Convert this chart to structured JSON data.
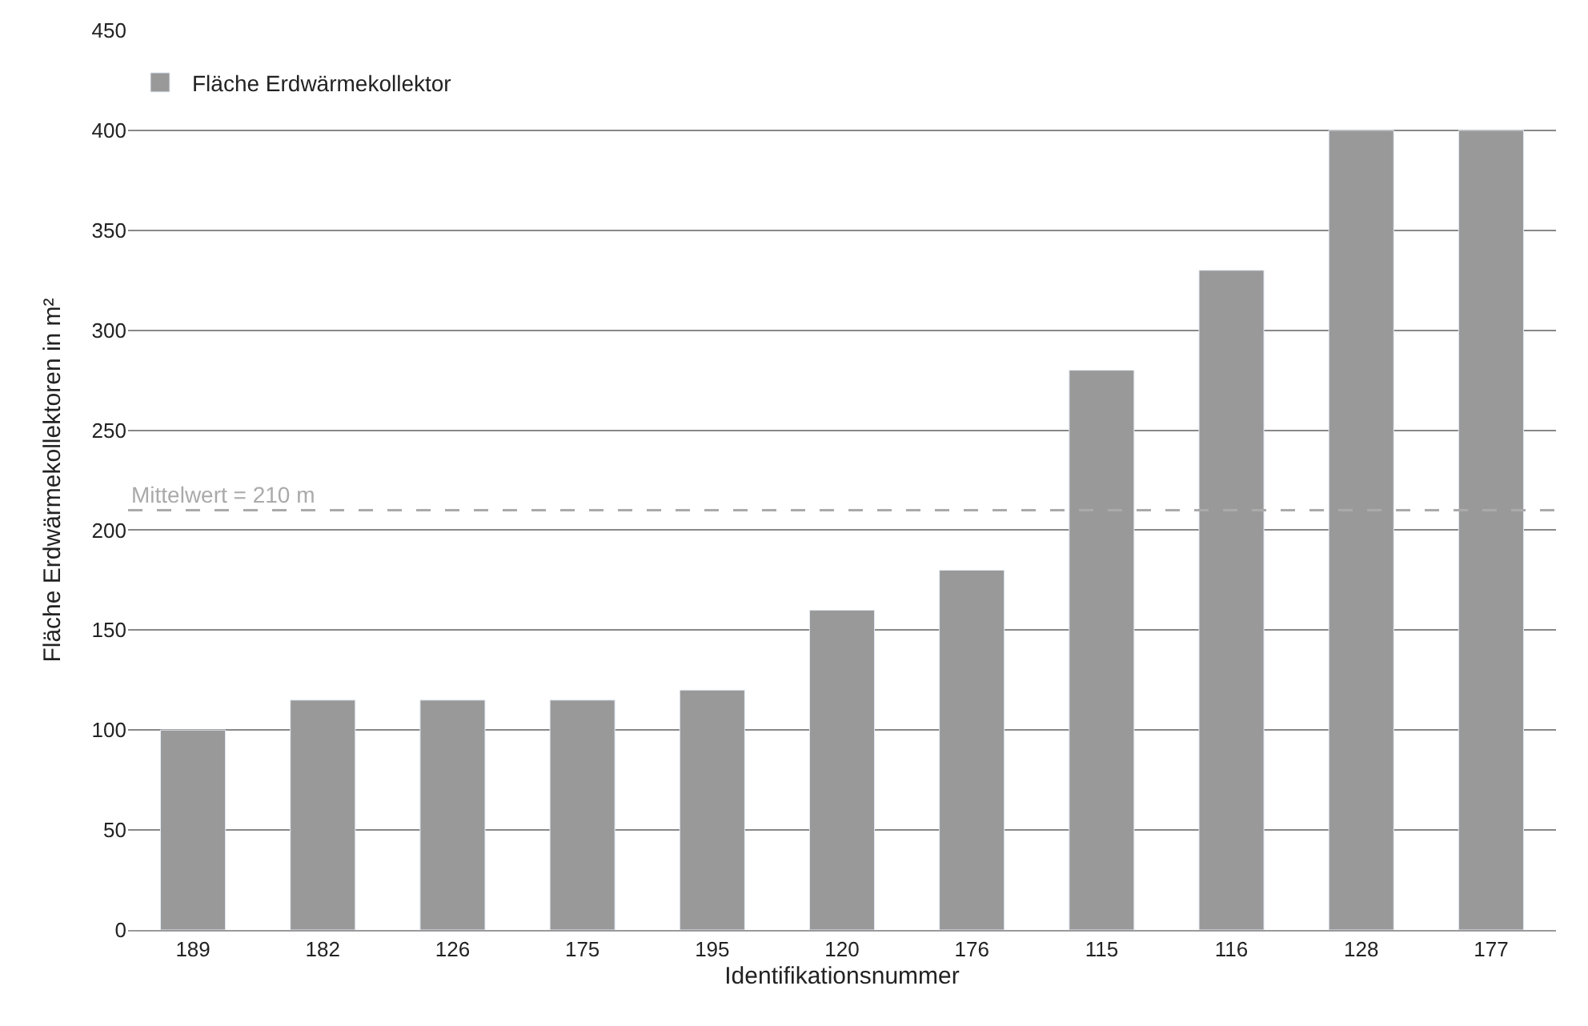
{
  "chart_data": {
    "type": "bar",
    "xlabel": "Identifikationsnummer",
    "ylabel": "Fläche Erdwärmekollektoren in m²",
    "categories": [
      "189",
      "182",
      "126",
      "175",
      "195",
      "120",
      "176",
      "115",
      "116",
      "128",
      "177"
    ],
    "series": [
      {
        "name": "Fläche Erdwärmekollektor",
        "color": "#999999",
        "values": [
          100,
          115,
          115,
          115,
          120,
          160,
          180,
          280,
          330,
          400,
          400
        ]
      }
    ],
    "ylim": [
      0,
      450
    ],
    "yticks": [
      0,
      50,
      100,
      150,
      200,
      250,
      300,
      350,
      400,
      450
    ],
    "grid": "y",
    "legend": "top left",
    "ref_lines": [
      {
        "axis": "y",
        "value": 210,
        "label": "Mittelwert = 210 m",
        "color": "#aaaaaa",
        "line_style": "dashed"
      }
    ]
  }
}
